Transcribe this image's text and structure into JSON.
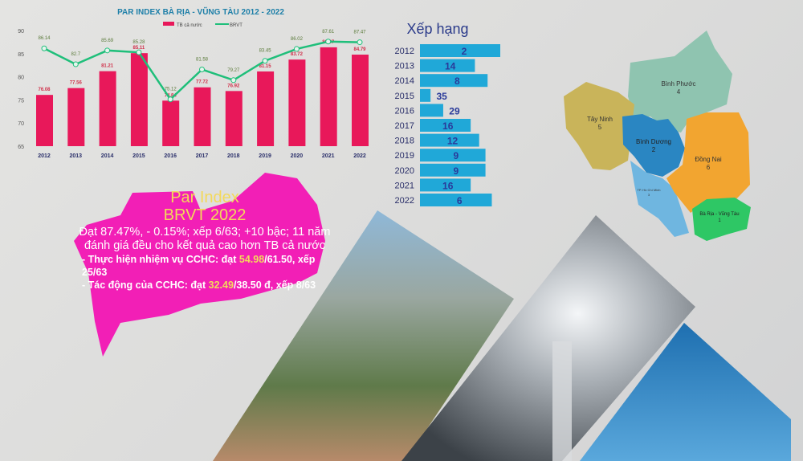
{
  "colors": {
    "bar": "#e8185a",
    "line": "#1fbf7a",
    "rank_bar": "#20a8d8",
    "pink_shape": "#f21fb6",
    "highlight": "#f3d95a"
  },
  "chart_data": [
    {
      "type": "bar+line",
      "title": "PAR INDEX BÀ RỊA - VŨNG TÀU 2012 - 2022",
      "categories": [
        "2012",
        "2013",
        "2014",
        "2015",
        "2016",
        "2017",
        "2018",
        "2019",
        "2020",
        "2021",
        "2022"
      ],
      "ylim": [
        65,
        90
      ],
      "yticks": [
        65,
        70,
        75,
        80,
        85,
        90
      ],
      "legend_position": "top",
      "series": [
        {
          "name": "TB cả nước",
          "kind": "bar",
          "values": [
            76.08,
            77.56,
            81.21,
            85.11,
            74.84,
            77.72,
            76.92,
            81.15,
            83.72,
            86.37,
            84.79
          ],
          "labels": [
            "76.08",
            "77.56",
            "81.21",
            "85.11",
            "74.84",
            "77.72",
            "76.92",
            "81.15",
            "83.72",
            "86.37",
            "84.79"
          ]
        },
        {
          "name": "BRVT",
          "kind": "line",
          "values": [
            86.14,
            82.7,
            85.69,
            85.28,
            75.12,
            81.58,
            79.27,
            83.45,
            86.02,
            87.61,
            87.47
          ],
          "labels": [
            "86.14",
            "82.7",
            "85.69",
            "85.28",
            "75.12",
            "81.58",
            "79.27",
            "83.45",
            "86.02",
            "87.61",
            "87.47"
          ]
        }
      ]
    },
    {
      "type": "bar",
      "orientation": "horizontal",
      "title": "Xếp hạng",
      "categories": [
        "2012",
        "2013",
        "2014",
        "2015",
        "2016",
        "2017",
        "2018",
        "2019",
        "2020",
        "2021",
        "2022"
      ],
      "values": [
        2,
        14,
        8,
        35,
        29,
        16,
        12,
        9,
        9,
        16,
        6
      ]
    }
  ],
  "summary": {
    "title_line1": "Par Index",
    "title_line2": "BRVT 2022",
    "main": "Đạt 87.47%, - 0.15%; xếp 6/63; +10 bậc; 11 năm đánh giá đều cho kết quả cao hơn TB cả nước",
    "item1_prefix": "- Thực hiện nhiệm vụ CCHC: đạt ",
    "item1_value": "54.98",
    "item1_suffix": "/61.50, xếp 25/63",
    "item2_prefix": "- Tác động của CCHC: đạt ",
    "item2_value": "32.49",
    "item2_suffix": "/38.50 đ, xếp 8/63"
  },
  "map": {
    "regions": [
      {
        "name": "Bình Phước",
        "rank": "4",
        "color": "#8fc4b0"
      },
      {
        "name": "Tây Ninh",
        "rank": "5",
        "color": "#c9b45a"
      },
      {
        "name": "Bình Dương",
        "rank": "2",
        "color": "#2a86c2"
      },
      {
        "name": "Đồng Nai",
        "rank": "6",
        "color": "#f2a530"
      },
      {
        "name": "TP. Hồ Chí Minh",
        "rank": "3",
        "color": "#6fb6e0"
      },
      {
        "name": "Bà Rịa - Vũng Tàu",
        "rank": "1",
        "color": "#2ec765"
      }
    ]
  }
}
